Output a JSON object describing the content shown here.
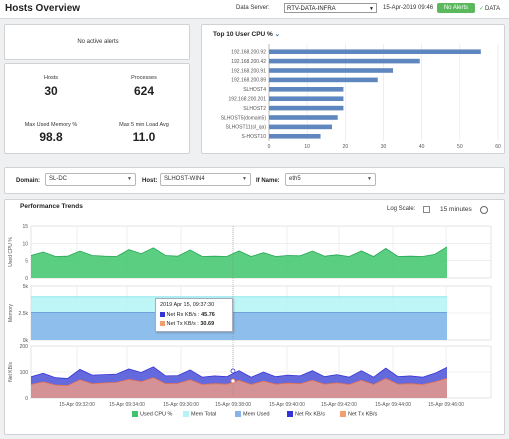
{
  "header": {
    "title": "Hosts Overview",
    "data_server_label": "Data Server:",
    "data_server_value": "RTV-DATA-INFRA",
    "date": "15-Apr-2019 09:46",
    "alert_badge": "No Alerts",
    "data_status": "DATA",
    "colors": {
      "badge": "#5cb85c"
    }
  },
  "alerts_panel": {
    "text": "No active alerts"
  },
  "stats": {
    "hosts_label": "Hosts",
    "hosts_value": "30",
    "processes_label": "Processes",
    "processes_value": "624",
    "max_mem_label": "Max Used Memory %",
    "max_mem_value": "98.8",
    "max_load_label": "Max 5 min Load Avg",
    "max_load_value": "11.0"
  },
  "top10": {
    "title": "Top 10 User CPU %",
    "chevron": "chevron-down-icon",
    "chart_data": {
      "type": "bar",
      "orientation": "horizontal",
      "categories": [
        "192.168.200.92",
        "192.168.200.42",
        "192.168.200.91",
        "192.168.200.89",
        "SLHOST4",
        "192.168.200.201",
        "SLHOST2",
        "SLHOST5(domain5)",
        "SLHOST11(sl_qa)",
        "S-HOST10"
      ],
      "values": [
        55.5,
        39.5,
        32.5,
        28.5,
        19.5,
        19.5,
        19.5,
        18.0,
        16.5,
        13.5
      ],
      "xticks": [
        "0",
        "10",
        "20",
        "30",
        "40",
        "50",
        "60"
      ],
      "xlim": [
        0,
        60
      ],
      "color": "#5f87bf"
    }
  },
  "filters": {
    "domain_label": "Domain:",
    "domain_value": "SL-DC",
    "host_label": "Host:",
    "host_value": "SLHOST-WIN4",
    "ifname_label": "If Name:",
    "ifname_value": "eth5"
  },
  "trends": {
    "title": "Performance Trends",
    "log_scale_label": "Log Scale:",
    "time_range": "15 minutes",
    "chart_data": [
      {
        "type": "area",
        "ylabel": "Used CPU %",
        "ylim": [
          0,
          15
        ],
        "yticks": [
          "15",
          "10",
          "5",
          "0"
        ],
        "series": [
          {
            "name": "Used CPU %",
            "color": "#3ec56b",
            "values": [
              6.5,
              7.5,
              6.2,
              6.3,
              7.8,
              6.5,
              6.3,
              6.2,
              8.2,
              7.0,
              8.7,
              6.5,
              6.3,
              8.1,
              6.2,
              6.3,
              6.2,
              7.8,
              6.2,
              7.3,
              6.2,
              6.5,
              6.4,
              7.8,
              6.3,
              6.7,
              6.2,
              7.8,
              6.2,
              8.5,
              6.2,
              6.3,
              6.2,
              6.8,
              9.0
            ]
          }
        ]
      },
      {
        "type": "area",
        "ylabel": "Memory",
        "ylim": [
          0,
          5000
        ],
        "yticks": [
          "5k",
          "2.5k",
          "0k"
        ],
        "series": [
          {
            "name": "Mem Total",
            "color": "#b3f5f7",
            "values": [
              4000
            ]
          },
          {
            "name": "Mem Used",
            "color": "#86b4ea",
            "values": [
              2550
            ]
          }
        ]
      },
      {
        "type": "area",
        "ylabel": "Net KB/s",
        "ylim": [
          0,
          200
        ],
        "yticks": [
          "200",
          "100",
          "0"
        ],
        "series": [
          {
            "name": "Net Rx KB/s",
            "color": "#4a4fd8",
            "values": [
              82,
              95,
              78,
              75,
              110,
              88,
              90,
              92,
              112,
              98,
              120,
              85,
              86,
              108,
              80,
              85,
              82,
              105,
              80,
              100,
              82,
              88,
              85,
              105,
              82,
              90,
              80,
              105,
              80,
              115,
              82,
              85,
              80,
              95,
              118
            ]
          },
          {
            "name": "Net Tx KB/s",
            "color": "#e89a8a",
            "values": [
              52,
              62,
              50,
              48,
              70,
              55,
              58,
              60,
              72,
              63,
              78,
              55,
              56,
              70,
              52,
              55,
              53,
              68,
              52,
              65,
              53,
              57,
              55,
              68,
              53,
              58,
              52,
              68,
              52,
              75,
              53,
              55,
              52,
              62,
              76
            ]
          }
        ]
      }
    ],
    "xticks": [
      "15-Apr 09:32:00",
      "15-Apr 09:34:00",
      "15-Apr 09:36:00",
      "15-Apr 09:38:00",
      "15-Apr 09:40:00",
      "15-Apr 09:42:00",
      "15-Apr 09:44:00",
      "15-Apr 09:46:00"
    ],
    "tooltip": {
      "title": "2019 Apr 15, 09:37:30",
      "rx_label": "Net Rx KB/s :",
      "rx_value": "45.76",
      "tx_label": "Net Tx KB/s :",
      "tx_value": "30.69"
    },
    "legend": [
      {
        "label": "Used CPU %",
        "color": "#3ec56b"
      },
      {
        "label": "Mem Total",
        "color": "#b3f5f7"
      },
      {
        "label": "Mem Used",
        "color": "#86b4ea"
      },
      {
        "label": "Net Rx KB/s",
        "color": "#3434d6"
      },
      {
        "label": "Net Tx KB/s",
        "color": "#f0a070"
      }
    ]
  }
}
